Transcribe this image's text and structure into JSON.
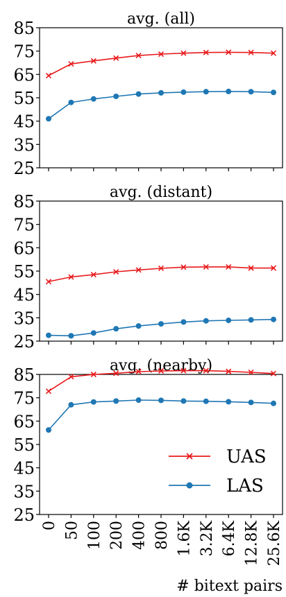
{
  "chart_data": {
    "type": "line",
    "categories": [
      "0",
      "50",
      "100",
      "200",
      "400",
      "800",
      "1.6K",
      "3.2K",
      "6.4K",
      "12.8K",
      "25.6K"
    ],
    "xlabel": "# bitext pairs",
    "ylim": [
      25,
      85
    ],
    "yticks": [
      25,
      35,
      45,
      55,
      65,
      75,
      85
    ],
    "colors": {
      "UAS": "#e8191b",
      "LAS": "#1f77b4"
    },
    "legend": {
      "placement": "lower-right",
      "panel": 2,
      "entries": [
        "UAS",
        "LAS"
      ]
    },
    "panels": [
      {
        "title": "avg. (all)",
        "series": [
          {
            "name": "UAS",
            "marker": "x",
            "values": [
              64.5,
              69.5,
              70.8,
              72.0,
              73.1,
              73.7,
              74.1,
              74.4,
              74.5,
              74.4,
              74.1
            ]
          },
          {
            "name": "LAS",
            "marker": "o",
            "values": [
              46.0,
              53.0,
              54.5,
              55.6,
              56.6,
              57.1,
              57.4,
              57.6,
              57.7,
              57.6,
              57.3
            ]
          }
        ]
      },
      {
        "title": "avg. (distant)",
        "series": [
          {
            "name": "UAS",
            "marker": "x",
            "values": [
              50.5,
              52.5,
              53.5,
              54.7,
              55.5,
              56.2,
              56.7,
              56.8,
              56.8,
              56.3,
              56.3
            ]
          },
          {
            "name": "LAS",
            "marker": "o",
            "values": [
              27.5,
              27.3,
              28.5,
              30.3,
              31.5,
              32.4,
              33.2,
              33.7,
              33.9,
              34.1,
              34.3
            ]
          }
        ]
      },
      {
        "title": "avg. (nearby)",
        "series": [
          {
            "name": "UAS",
            "marker": "x",
            "values": [
              77.8,
              84.0,
              85.0,
              85.5,
              86.2,
              86.5,
              86.6,
              86.6,
              86.3,
              85.9,
              85.4
            ]
          },
          {
            "name": "LAS",
            "marker": "o",
            "values": [
              61.2,
              72.0,
              73.2,
              73.6,
              74.0,
              73.9,
              73.6,
              73.5,
              73.3,
              73.0,
              72.6
            ]
          }
        ]
      }
    ]
  }
}
